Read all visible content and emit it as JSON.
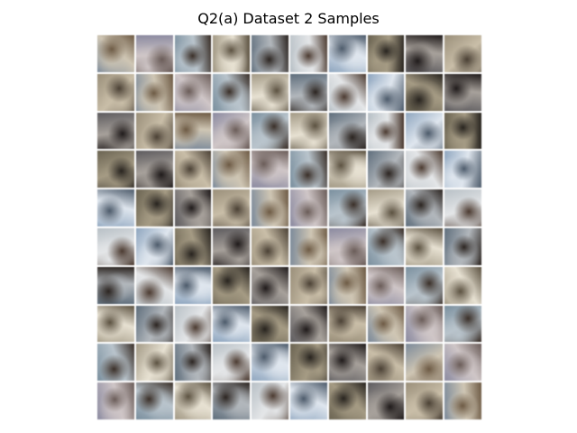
{
  "figure": {
    "title": "Q2(a) Dataset 2 Samples"
  },
  "grid": {
    "rows": 10,
    "cols": 10
  },
  "palette": [
    [
      "#7c8a9a",
      "#cfc6b4",
      "#6d5a44"
    ],
    [
      "#a39a86",
      "#e7e1d2",
      "#5b5140"
    ],
    [
      "#8fa6bf",
      "#dfe6ee",
      "#4c5a6a"
    ],
    [
      "#9a8f7a",
      "#c9bea8",
      "#4a4034"
    ],
    [
      "#7a8f9e",
      "#b9c4cc",
      "#3a2f28"
    ],
    [
      "#b8c0c6",
      "#e4e6e8",
      "#4b3a30"
    ],
    [
      "#5d5b5e",
      "#a7a19b",
      "#1f1a1a"
    ],
    [
      "#8b8aa0",
      "#cfc6c7",
      "#6a5c58"
    ],
    [
      "#5f6e7c",
      "#b2b7bc",
      "#2b2420"
    ],
    [
      "#6b6452",
      "#a59b84",
      "#27231e"
    ]
  ]
}
